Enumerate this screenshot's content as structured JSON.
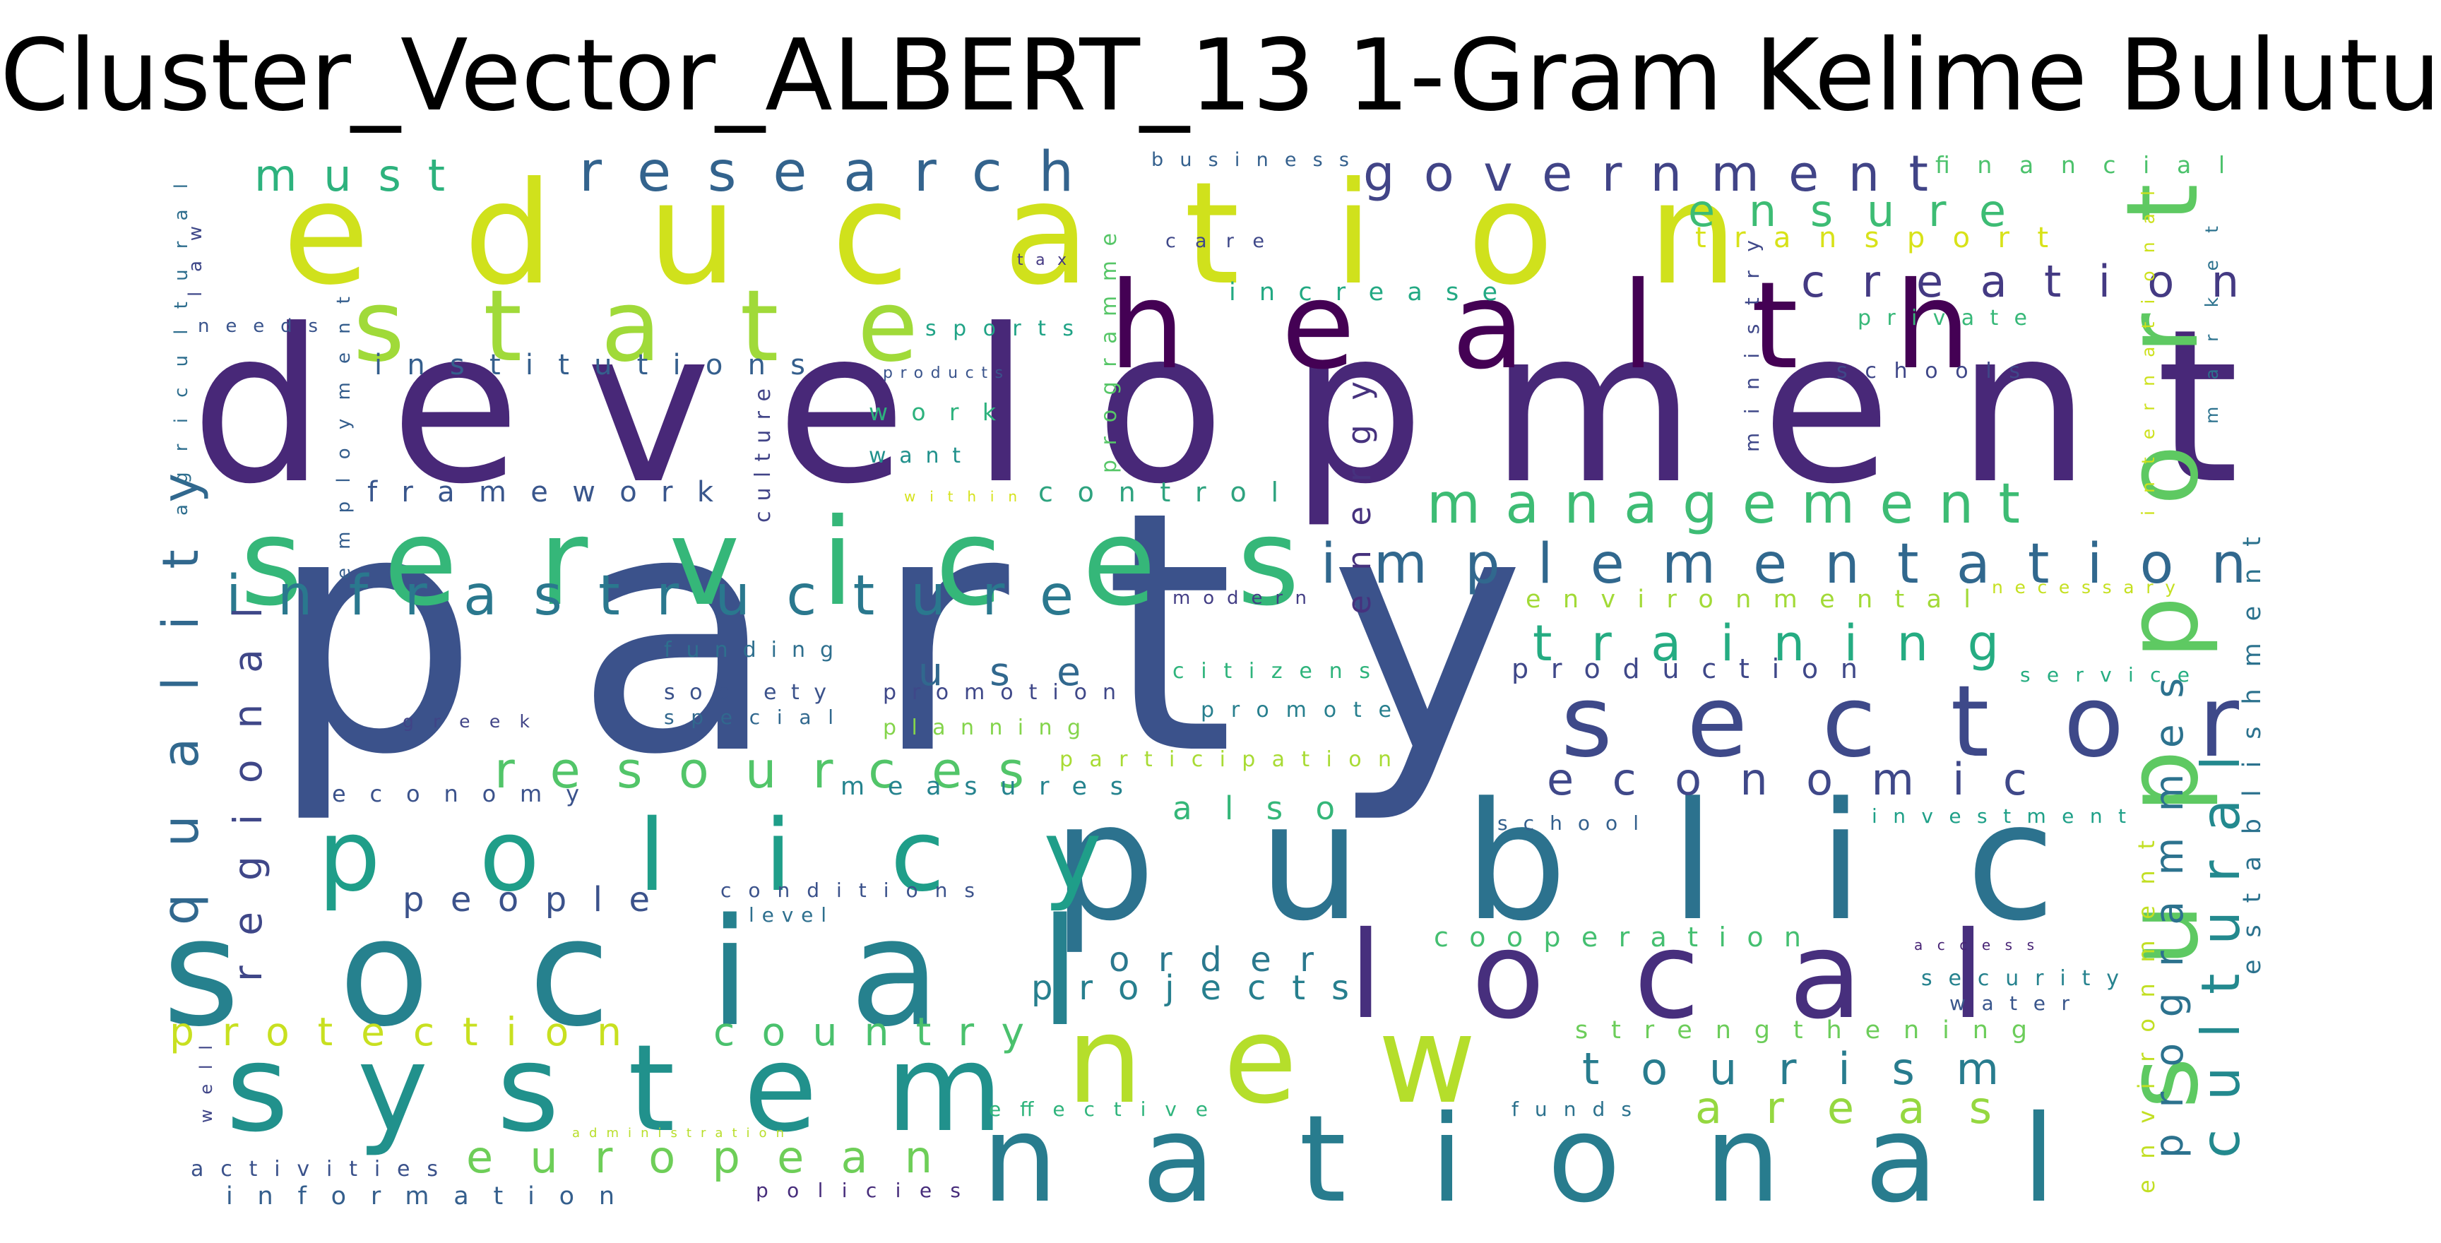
{
  "title": "Cluster_Vector_ALBERT_13 1-Gram Kelime Bulutu",
  "words": [
    {
      "text": "party",
      "color": "#3b528b"
    },
    {
      "text": "development",
      "color": "#482878"
    },
    {
      "text": "education",
      "color": "#d0e11c"
    },
    {
      "text": "public",
      "color": "#2c728e"
    },
    {
      "text": "social",
      "color": "#26818e"
    },
    {
      "text": "health",
      "color": "#440154"
    },
    {
      "text": "services",
      "color": "#35b779"
    },
    {
      "text": "system",
      "color": "#21918c"
    },
    {
      "text": "national",
      "color": "#287c8e"
    },
    {
      "text": "local",
      "color": "#472f7d"
    },
    {
      "text": "new",
      "color": "#b5de2b"
    },
    {
      "text": "state",
      "color": "#a0da39"
    },
    {
      "text": "support",
      "color": "#5ec962"
    },
    {
      "text": "policy",
      "color": "#1f9e89"
    },
    {
      "text": "sector",
      "color": "#3e4989"
    },
    {
      "text": "research",
      "color": "#33638d"
    },
    {
      "text": "government",
      "color": "#414487"
    },
    {
      "text": "implementation",
      "color": "#31688e"
    },
    {
      "text": "management",
      "color": "#3dbc74"
    },
    {
      "text": "infrastructure",
      "color": "#2a788e"
    },
    {
      "text": "creation",
      "color": "#443a83"
    },
    {
      "text": "training",
      "color": "#25ac82"
    },
    {
      "text": "economic",
      "color": "#3f4889"
    },
    {
      "text": "resources",
      "color": "#52c569"
    },
    {
      "text": "quality",
      "color": "#31688e"
    },
    {
      "text": "cultural",
      "color": "#23898e"
    },
    {
      "text": "tourism",
      "color": "#287c8e"
    },
    {
      "text": "european",
      "color": "#6ece58"
    },
    {
      "text": "must",
      "color": "#2db27d"
    },
    {
      "text": "ensure",
      "color": "#3dbc74"
    },
    {
      "text": "regional",
      "color": "#3f4788"
    },
    {
      "text": "programmes",
      "color": "#2c728e"
    },
    {
      "text": "areas",
      "color": "#95d840"
    },
    {
      "text": "protection",
      "color": "#c8e020"
    },
    {
      "text": "country",
      "color": "#4ac16d"
    },
    {
      "text": "use",
      "color": "#31688e"
    },
    {
      "text": "people",
      "color": "#3b528b"
    },
    {
      "text": "order",
      "color": "#2a788e"
    },
    {
      "text": "projects",
      "color": "#277f8e"
    },
    {
      "text": "transport",
      "color": "#d8e219"
    },
    {
      "text": "energy",
      "color": "#46327e"
    },
    {
      "text": "establishment",
      "color": "#2c728e"
    },
    {
      "text": "environment",
      "color": "#c2df23"
    },
    {
      "text": "institutions",
      "color": "#355f8d"
    },
    {
      "text": "framework",
      "color": "#39568c"
    },
    {
      "text": "control",
      "color": "#2ea37f"
    },
    {
      "text": "also",
      "color": "#35b779"
    },
    {
      "text": "production",
      "color": "#3f4889"
    },
    {
      "text": "cooperation",
      "color": "#44bf70"
    },
    {
      "text": "environmental",
      "color": "#a2da37"
    },
    {
      "text": "strengthening",
      "color": "#6ccd5a"
    },
    {
      "text": "measures",
      "color": "#25838e"
    },
    {
      "text": "economy",
      "color": "#3b528b"
    },
    {
      "text": "information",
      "color": "#355f8d"
    },
    {
      "text": "activities",
      "color": "#3b528b"
    },
    {
      "text": "increase",
      "color": "#23a983"
    },
    {
      "text": "financial",
      "color": "#4cc26c"
    },
    {
      "text": "business",
      "color": "#34608d"
    },
    {
      "text": "care",
      "color": "#3f4889"
    },
    {
      "text": "tax",
      "color": "#443983"
    },
    {
      "text": "programme",
      "color": "#56c667"
    },
    {
      "text": "sports",
      "color": "#20a386"
    },
    {
      "text": "work",
      "color": "#2db27d"
    },
    {
      "text": "want",
      "color": "#21918c"
    },
    {
      "text": "products",
      "color": "#3a548c"
    },
    {
      "text": "within",
      "color": "#d5e21a"
    },
    {
      "text": "culture",
      "color": "#414487"
    },
    {
      "text": "ministry",
      "color": "#3f4889"
    },
    {
      "text": "international",
      "color": "#cde11d"
    },
    {
      "text": "market",
      "color": "#2c728e"
    },
    {
      "text": "private",
      "color": "#37b878"
    },
    {
      "text": "schools",
      "color": "#3f4788"
    },
    {
      "text": "modern",
      "color": "#433e85"
    },
    {
      "text": "necessary",
      "color": "#c5e021"
    },
    {
      "text": "funding",
      "color": "#2e6f8e"
    },
    {
      "text": "society",
      "color": "#3b528b"
    },
    {
      "text": "promotion",
      "color": "#3f4889"
    },
    {
      "text": "special",
      "color": "#31688e"
    },
    {
      "text": "citizens",
      "color": "#2fb47c"
    },
    {
      "text": "promote",
      "color": "#277f8e"
    },
    {
      "text": "planning",
      "color": "#84d44b"
    },
    {
      "text": "participation",
      "color": "#a8db34"
    },
    {
      "text": "greek",
      "color": "#414487"
    },
    {
      "text": "service",
      "color": "#26ad81"
    },
    {
      "text": "school",
      "color": "#34608d"
    },
    {
      "text": "investment",
      "color": "#1fa088"
    },
    {
      "text": "conditions",
      "color": "#3b528b"
    },
    {
      "text": "level",
      "color": "#2e6f8e"
    },
    {
      "text": "access",
      "color": "#482475"
    },
    {
      "text": "security",
      "color": "#26828e"
    },
    {
      "text": "water",
      "color": "#39568c"
    },
    {
      "text": "effective",
      "color": "#2fb47c"
    },
    {
      "text": "funds",
      "color": "#2c728e"
    },
    {
      "text": "administration",
      "color": "#b8de29"
    },
    {
      "text": "policies",
      "color": "#472d7b"
    },
    {
      "text": "well",
      "color": "#404688"
    },
    {
      "text": "needs",
      "color": "#3a548c"
    },
    {
      "text": "law",
      "color": "#3f4889"
    },
    {
      "text": "agricultural",
      "color": "#2e6e8e"
    },
    {
      "text": "employment",
      "color": "#355e8d"
    }
  ]
}
